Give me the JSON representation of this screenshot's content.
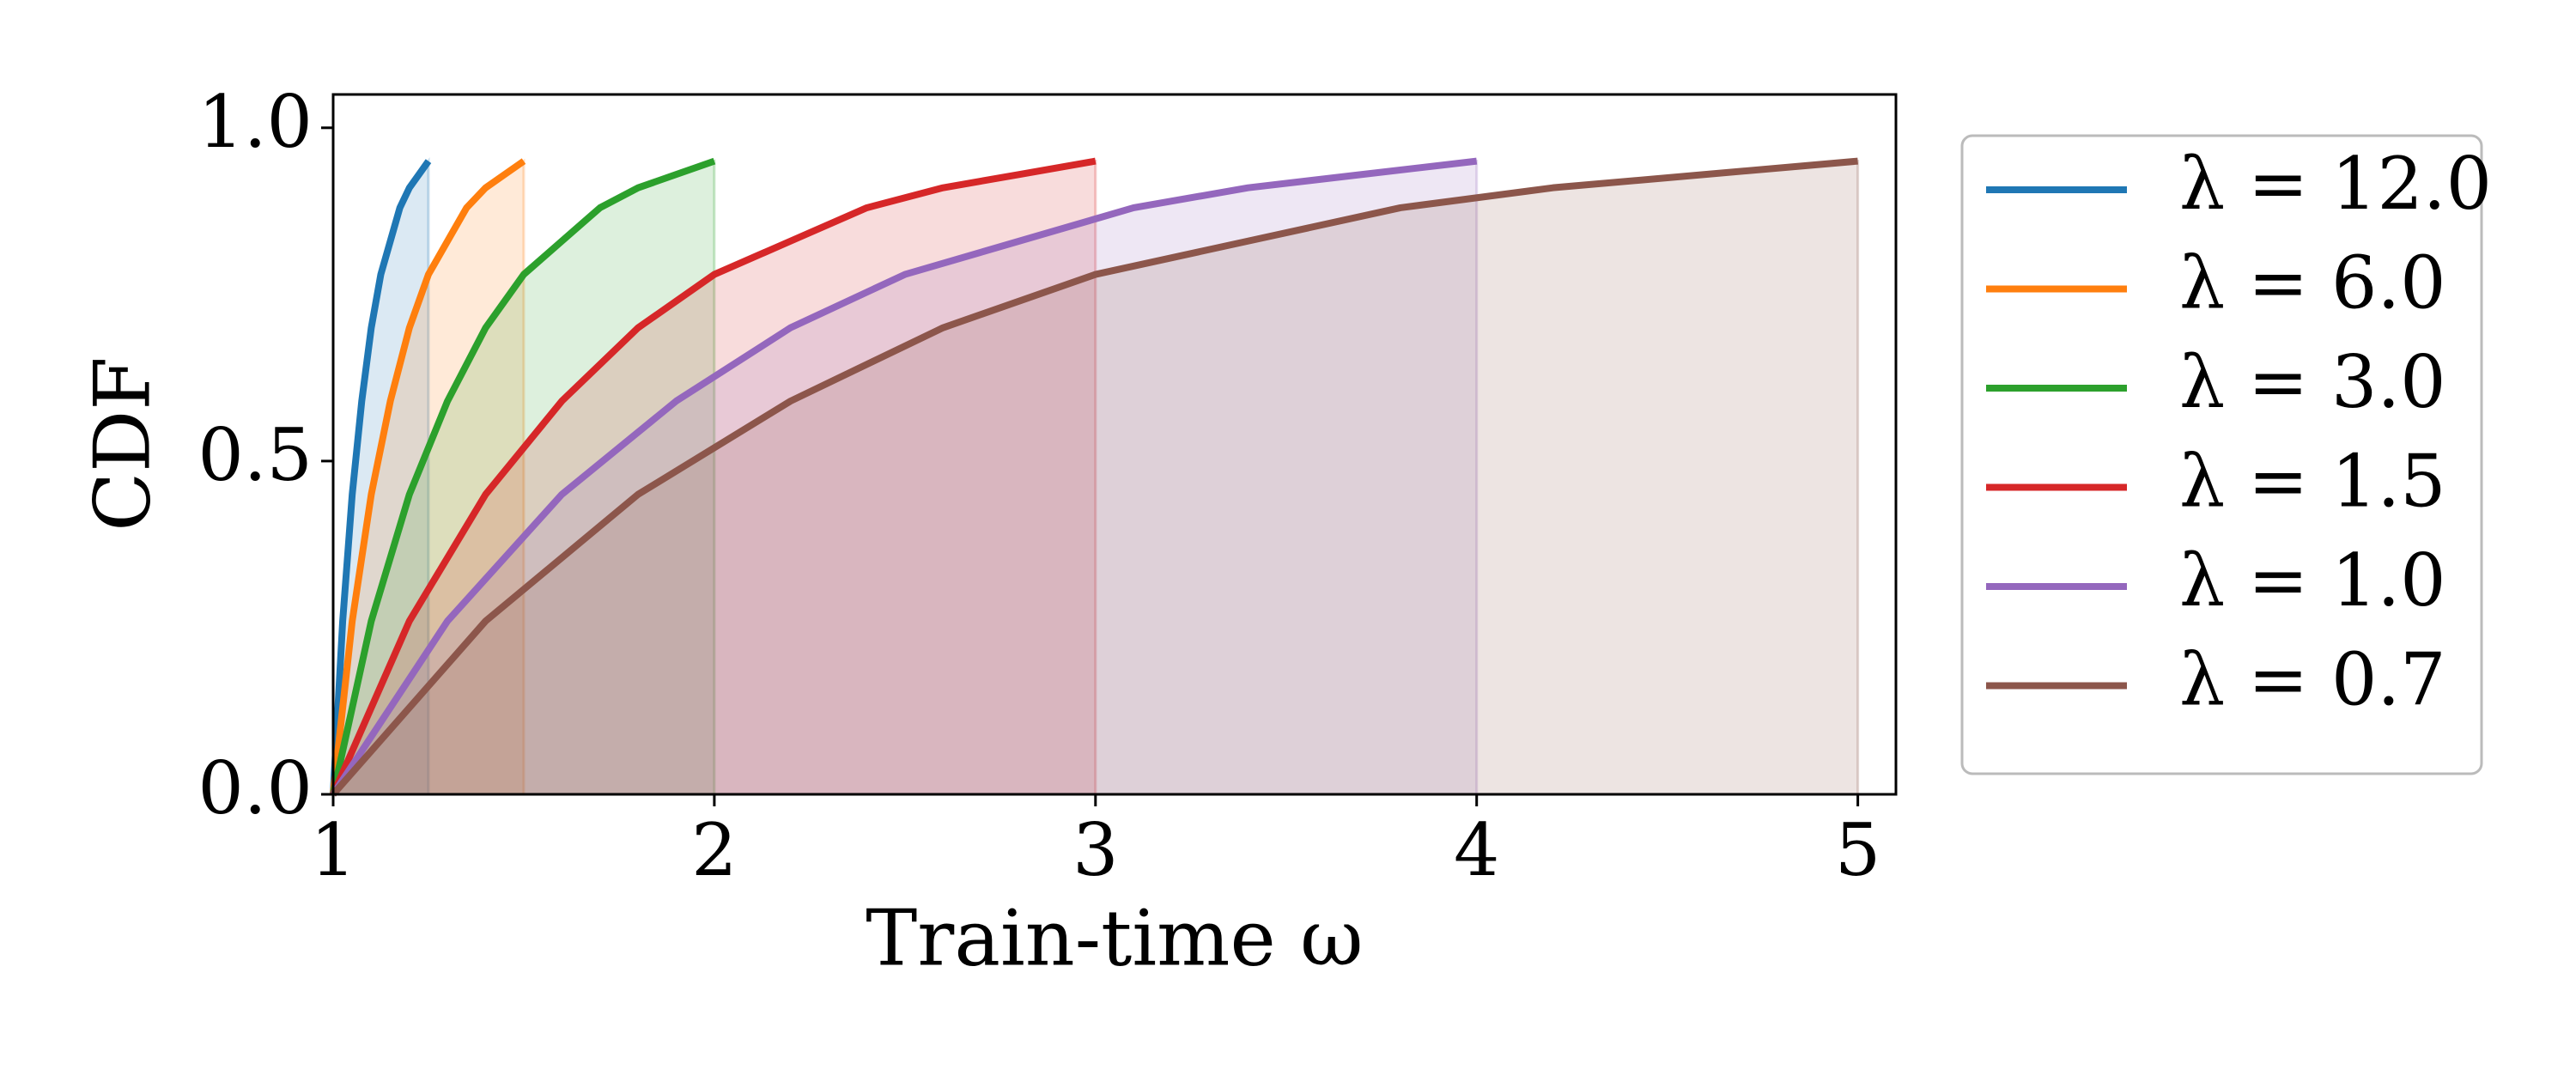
{
  "chart_data": {
    "type": "line",
    "fill_under": true,
    "x_label": "Train-time ω",
    "y_label": "CDF",
    "xlim": [
      1,
      5.1
    ],
    "xticks": [
      1,
      2,
      3,
      4,
      5
    ],
    "ylim": [
      0,
      1.05
    ],
    "yticks": [
      {
        "value": 0,
        "label": "0.0"
      },
      {
        "value": 0.5,
        "label": "0.5"
      },
      {
        "value": 1,
        "label": "1.0"
      }
    ],
    "legend": "outside-right",
    "series": [
      {
        "name": "λ = 12.0",
        "color": "#1f77b4",
        "x": [
          1,
          1.025,
          1.05,
          1.075,
          1.1,
          1.125,
          1.15,
          1.175,
          1.2,
          1.225,
          1.25
        ],
        "values": [
          0,
          0.26,
          0.45,
          0.59,
          0.7,
          0.78,
          0.83,
          0.88,
          0.91,
          0.93,
          0.95
        ]
      },
      {
        "name": "λ = 6.0",
        "color": "#ff7f0e",
        "x": [
          1,
          1.05,
          1.1,
          1.15,
          1.2,
          1.25,
          1.3,
          1.35,
          1.4,
          1.45,
          1.5
        ],
        "values": [
          0,
          0.26,
          0.45,
          0.59,
          0.7,
          0.78,
          0.83,
          0.88,
          0.91,
          0.93,
          0.95
        ]
      },
      {
        "name": "λ = 3.0",
        "color": "#2ca02c",
        "x": [
          1,
          1.1,
          1.2,
          1.3,
          1.4,
          1.5,
          1.6,
          1.7,
          1.8,
          1.9,
          2
        ],
        "values": [
          0,
          0.26,
          0.45,
          0.59,
          0.7,
          0.78,
          0.83,
          0.88,
          0.91,
          0.93,
          0.95
        ]
      },
      {
        "name": "λ = 1.5",
        "color": "#d62728",
        "x": [
          1,
          1.2,
          1.4,
          1.6,
          1.8,
          2,
          2.2,
          2.4,
          2.6,
          2.8,
          3
        ],
        "values": [
          0,
          0.26,
          0.45,
          0.59,
          0.7,
          0.78,
          0.83,
          0.88,
          0.91,
          0.93,
          0.95
        ]
      },
      {
        "name": "λ = 1.0",
        "color": "#9467bd",
        "x": [
          1,
          1.3,
          1.6,
          1.9,
          2.2,
          2.5,
          2.8,
          3.1,
          3.4,
          3.7,
          4
        ],
        "values": [
          0,
          0.26,
          0.45,
          0.59,
          0.7,
          0.78,
          0.83,
          0.88,
          0.91,
          0.93,
          0.95
        ]
      },
      {
        "name": "λ = 0.7",
        "color": "#8c564b",
        "x": [
          1,
          1.4,
          1.8,
          2.2,
          2.6,
          3,
          3.4,
          3.8,
          4.2,
          4.6,
          5
        ],
        "values": [
          0,
          0.26,
          0.45,
          0.59,
          0.7,
          0.78,
          0.83,
          0.88,
          0.91,
          0.93,
          0.95
        ]
      }
    ]
  }
}
